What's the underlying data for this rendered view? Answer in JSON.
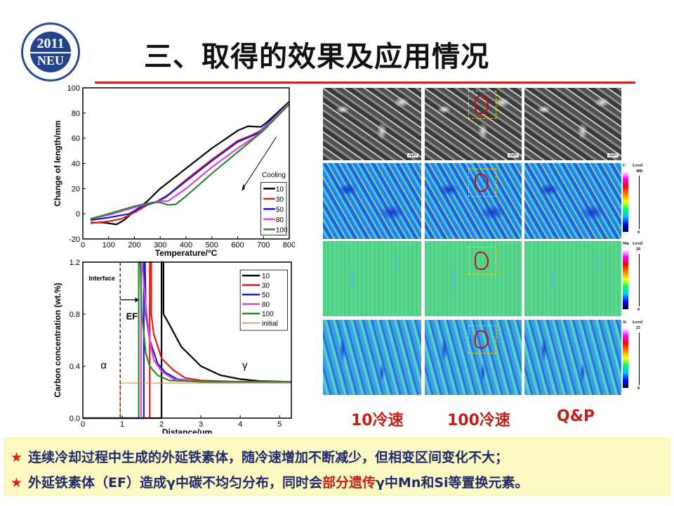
{
  "logo": {
    "year": "2011",
    "name": "NEU",
    "ring_text": "钢铁共性技术协同创新中心"
  },
  "title": "三、取得的效果及应用情况",
  "colors": {
    "accent_red": "#c0271f",
    "summary_bg": "#fcf8c2",
    "summary_text": "#1f2a6b",
    "highlight": "#c0201a"
  },
  "chart_data": [
    {
      "type": "line",
      "xlabel": "Temperature/°C",
      "ylabel": "Change of length/mm",
      "xlim": [
        0,
        800
      ],
      "ylim": [
        -20,
        100
      ],
      "xticks": [
        0,
        100,
        200,
        300,
        400,
        500,
        600,
        700,
        800
      ],
      "yticks": [
        -20,
        0,
        20,
        40,
        60,
        80,
        100
      ],
      "legend_title": "Cooling",
      "legend_position": "bottom-right",
      "annotation_arrow": "cooling direction",
      "series": [
        {
          "name": "10",
          "color": "#000000",
          "points": [
            [
              30,
              -7
            ],
            [
              80,
              -7
            ],
            [
              130,
              -8.5
            ],
            [
              160,
              -5
            ],
            [
              200,
              2
            ],
            [
              250,
              10
            ],
            [
              300,
              20
            ],
            [
              400,
              36
            ],
            [
              500,
              52
            ],
            [
              600,
              66
            ],
            [
              640,
              69.5
            ],
            [
              690,
              69
            ],
            [
              710,
              72
            ],
            [
              800,
              89
            ]
          ]
        },
        {
          "name": "30",
          "color": "#e0201a",
          "points": [
            [
              30,
              -7.5
            ],
            [
              100,
              -6
            ],
            [
              150,
              -4
            ],
            [
              200,
              1
            ],
            [
              250,
              7
            ],
            [
              290,
              10
            ],
            [
              330,
              15
            ],
            [
              400,
              27
            ],
            [
              500,
              43
            ],
            [
              600,
              58
            ],
            [
              650,
              62
            ],
            [
              700,
              67
            ],
            [
              800,
              88
            ]
          ]
        },
        {
          "name": "50",
          "color": "#1a1ad0",
          "points": [
            [
              30,
              -5
            ],
            [
              100,
              -3
            ],
            [
              180,
              0
            ],
            [
              230,
              6
            ],
            [
              280,
              9
            ],
            [
              320,
              13
            ],
            [
              400,
              26
            ],
            [
              500,
              42
            ],
            [
              600,
              57
            ],
            [
              680,
              64
            ],
            [
              800,
              88
            ]
          ]
        },
        {
          "name": "80",
          "color": "#e040e0",
          "points": [
            [
              30,
              -4
            ],
            [
              100,
              -1
            ],
            [
              200,
              5
            ],
            [
              270,
              9
            ],
            [
              300,
              10
            ],
            [
              330,
              10
            ],
            [
              400,
              20
            ],
            [
              500,
              37
            ],
            [
              600,
              52
            ],
            [
              680,
              63
            ],
            [
              800,
              88
            ]
          ]
        },
        {
          "name": "100",
          "color": "#2a8a2a",
          "points": [
            [
              30,
              -4
            ],
            [
              100,
              0
            ],
            [
              200,
              6
            ],
            [
              270,
              9
            ],
            [
              300,
              9
            ],
            [
              330,
              7
            ],
            [
              360,
              7.5
            ],
            [
              400,
              14
            ],
            [
              500,
              32
            ],
            [
              600,
              49
            ],
            [
              700,
              66
            ],
            [
              800,
              87
            ]
          ]
        }
      ]
    },
    {
      "type": "line",
      "xlabel": "Distance/μm",
      "ylabel": "Carbon concentration (wt.%)",
      "xlim": [
        0,
        5.3
      ],
      "ylim": [
        0,
        1.2
      ],
      "xticks": [
        0,
        1,
        2,
        3,
        4,
        5
      ],
      "yticks": [
        0.0,
        0.4,
        0.8,
        1.2
      ],
      "legend_position": "top-right",
      "annotations": {
        "interface": "Interface",
        "ef": "EF",
        "alpha": "α",
        "gamma": "γ",
        "interface_x": 0.95
      },
      "series": [
        {
          "name": "10",
          "color": "#000000",
          "points": [
            [
              0,
              0
            ],
            [
              2.0,
              0
            ],
            [
              2.0,
              1.2
            ],
            [
              2.05,
              1.2
            ],
            [
              2.05,
              0.8
            ],
            [
              2.2,
              0.72
            ],
            [
              2.5,
              0.55
            ],
            [
              3,
              0.4
            ],
            [
              3.5,
              0.33
            ],
            [
              4,
              0.3
            ],
            [
              4.5,
              0.285
            ],
            [
              5.3,
              0.28
            ]
          ]
        },
        {
          "name": "30",
          "color": "#e0201a",
          "points": [
            [
              0,
              0
            ],
            [
              1.7,
              0
            ],
            [
              1.7,
              1.2
            ],
            [
              1.74,
              1.2
            ],
            [
              1.74,
              0.8
            ],
            [
              1.8,
              0.65
            ],
            [
              2,
              0.46
            ],
            [
              2.3,
              0.37
            ],
            [
              2.6,
              0.31
            ],
            [
              3,
              0.29
            ],
            [
              4,
              0.28
            ],
            [
              5.3,
              0.28
            ]
          ]
        },
        {
          "name": "50",
          "color": "#1a1ad0",
          "points": [
            [
              0,
              0
            ],
            [
              1.55,
              0
            ],
            [
              1.55,
              1.2
            ],
            [
              1.58,
              1.2
            ],
            [
              1.6,
              0.8
            ],
            [
              1.7,
              0.6
            ],
            [
              1.9,
              0.42
            ],
            [
              2.1,
              0.35
            ],
            [
              2.4,
              0.3
            ],
            [
              3,
              0.28
            ],
            [
              5.3,
              0.28
            ]
          ]
        },
        {
          "name": "80",
          "color": "#e040e0",
          "points": [
            [
              0,
              0
            ],
            [
              1.48,
              0
            ],
            [
              1.48,
              1.2
            ],
            [
              1.5,
              1.2
            ],
            [
              1.6,
              0.86
            ],
            [
              1.7,
              0.6
            ],
            [
              1.8,
              0.45
            ],
            [
              2,
              0.36
            ],
            [
              2.3,
              0.3
            ],
            [
              3,
              0.28
            ],
            [
              5.3,
              0.28
            ]
          ]
        },
        {
          "name": "100",
          "color": "#2a8a2a",
          "points": [
            [
              0,
              0
            ],
            [
              1.42,
              0
            ],
            [
              1.42,
              1.2
            ],
            [
              1.46,
              1.2
            ],
            [
              1.5,
              0.8
            ],
            [
              1.6,
              0.5
            ],
            [
              1.7,
              0.4
            ],
            [
              1.9,
              0.33
            ],
            [
              2.2,
              0.29
            ],
            [
              3,
              0.28
            ],
            [
              5.3,
              0.28
            ]
          ]
        },
        {
          "name": "initial",
          "color": "#e09020",
          "points": [
            [
              0,
              0
            ],
            [
              0.95,
              0
            ],
            [
              0.95,
              0.27
            ],
            [
              5.3,
              0.27
            ]
          ]
        }
      ]
    }
  ],
  "micrographs": {
    "columns": [
      "10冷速",
      "100冷速",
      "Q&P"
    ],
    "scale_label": "2μm",
    "maps": [
      {
        "element": "C",
        "level_label": "Level",
        "max": "400",
        "min": "0"
      },
      {
        "element": "Mn",
        "level_label": "Level",
        "max": "20",
        "min": "0"
      },
      {
        "element": "Si",
        "level_label": "Level",
        "max": "25",
        "min": "0"
      }
    ]
  },
  "summary": {
    "bullet1": "连续冷却过程中生成的外延铁素体，随冷速增加不断减少，但相变区间变化不大；",
    "bullet2_pre": "外延铁素体（EF）造成γ中碳不均匀分布，同时会",
    "bullet2_highlight": "部分遗传",
    "bullet2_post": "γ中Mn和Si等置换元素。",
    "star": "★"
  }
}
